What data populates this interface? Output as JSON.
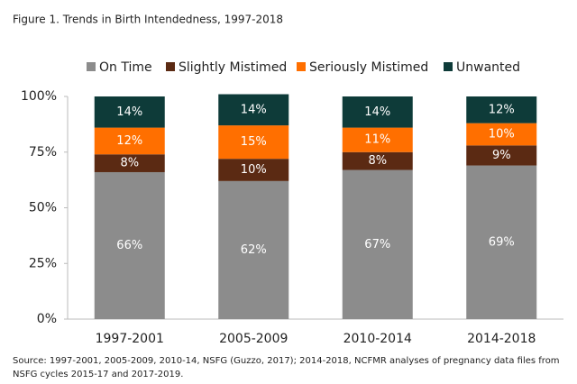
{
  "chart_data": {
    "type": "stacked_bar",
    "title": "Figure 1. Trends in Birth Intendedness, 1997-2018",
    "categories": [
      "1997-2001",
      "2005-2009",
      "2010-2014",
      "2014-2018"
    ],
    "series": [
      {
        "name": "On Time",
        "color": "#8c8c8c",
        "values": [
          66,
          62,
          67,
          69
        ],
        "value_labels": [
          "66%",
          "62%",
          "67%",
          "69%"
        ]
      },
      {
        "name": "Slightly Mistimed",
        "color": "#5b2a13",
        "values": [
          8,
          10,
          8,
          9
        ],
        "value_labels": [
          "8%",
          "10%",
          "8%",
          "9%"
        ]
      },
      {
        "name": "Seriously Mistimed",
        "color": "#ff6f00",
        "values": [
          12,
          15,
          11,
          10
        ],
        "value_labels": [
          "12%",
          "15%",
          "11%",
          "10%"
        ]
      },
      {
        "name": "Unwanted",
        "color": "#0e3b39",
        "values": [
          14,
          14,
          14,
          12
        ],
        "value_labels": [
          "14%",
          "14%",
          "14%",
          "12%"
        ]
      }
    ],
    "ylim": [
      0,
      100
    ],
    "yticks": [
      {
        "value": 0,
        "label": "0%"
      },
      {
        "value": 25,
        "label": "25%"
      },
      {
        "value": 50,
        "label": "50%"
      },
      {
        "value": 75,
        "label": "75%"
      },
      {
        "value": 100,
        "label": "100%"
      }
    ],
    "legend": "top",
    "source": "Source: 1997-2001, 2005-2009, 2010-14, NSFG (Guzzo, 2017); 2014-2018, NCFMR analyses of pregnancy data files from NSFG cycles 2015-17 and 2017-2019."
  }
}
